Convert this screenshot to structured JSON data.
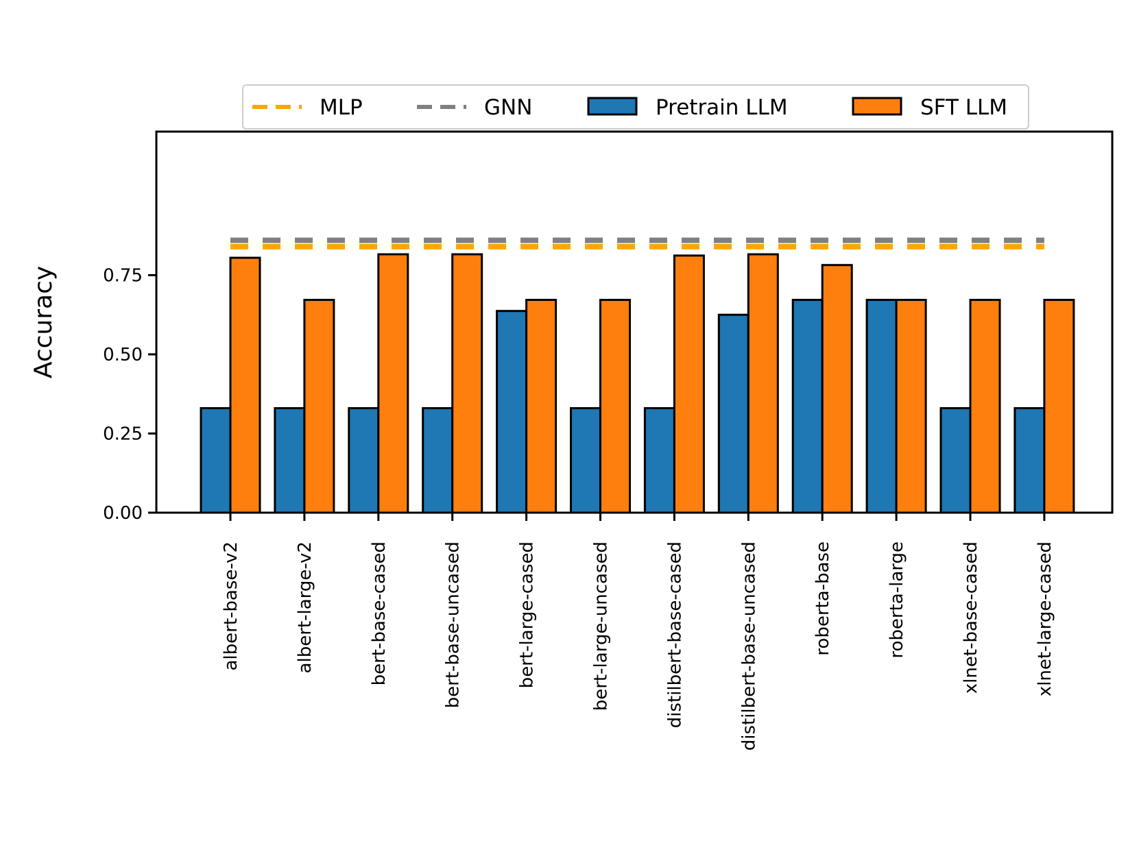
{
  "chart_data": {
    "type": "bar",
    "title": "",
    "xlabel": "",
    "ylabel": "Accuracy",
    "ylim": [
      0,
      0.9
    ],
    "yticks": [
      0,
      0.25,
      0.5,
      0.75
    ],
    "ytick_labels": [
      "0.00",
      "0.25",
      "0.50",
      "0.75"
    ],
    "categories": [
      "albert-base-v2",
      "albert-large-v2",
      "bert-base-cased",
      "bert-base-uncased",
      "bert-large-cased",
      "bert-large-uncased",
      "distilbert-base-cased",
      "distilbert-base-uncased",
      "roberta-base",
      "roberta-large",
      "xlnet-base-cased",
      "xlnet-large-cased"
    ],
    "series": [
      {
        "name": "Pretrain LLM",
        "color": "#1f77b4",
        "values": [
          0.33,
          0.33,
          0.33,
          0.33,
          0.637,
          0.33,
          0.33,
          0.625,
          0.672,
          0.672,
          0.33,
          0.33
        ]
      },
      {
        "name": "SFT LLM",
        "color": "#ff7f0e",
        "values": [
          0.805,
          0.672,
          0.816,
          0.816,
          0.672,
          0.672,
          0.812,
          0.816,
          0.782,
          0.672,
          0.672,
          0.672
        ]
      }
    ],
    "reference_lines": [
      {
        "name": "MLP",
        "value": 0.84,
        "color": "#ffa500",
        "style": "dashed"
      },
      {
        "name": "GNN",
        "value": 0.86,
        "color": "#808080",
        "style": "dashed"
      }
    ],
    "legend": {
      "placement": "top-center, above plot",
      "entries": [
        "MLP",
        "GNN",
        "Pretrain LLM",
        "SFT LLM"
      ]
    },
    "grid": false
  }
}
